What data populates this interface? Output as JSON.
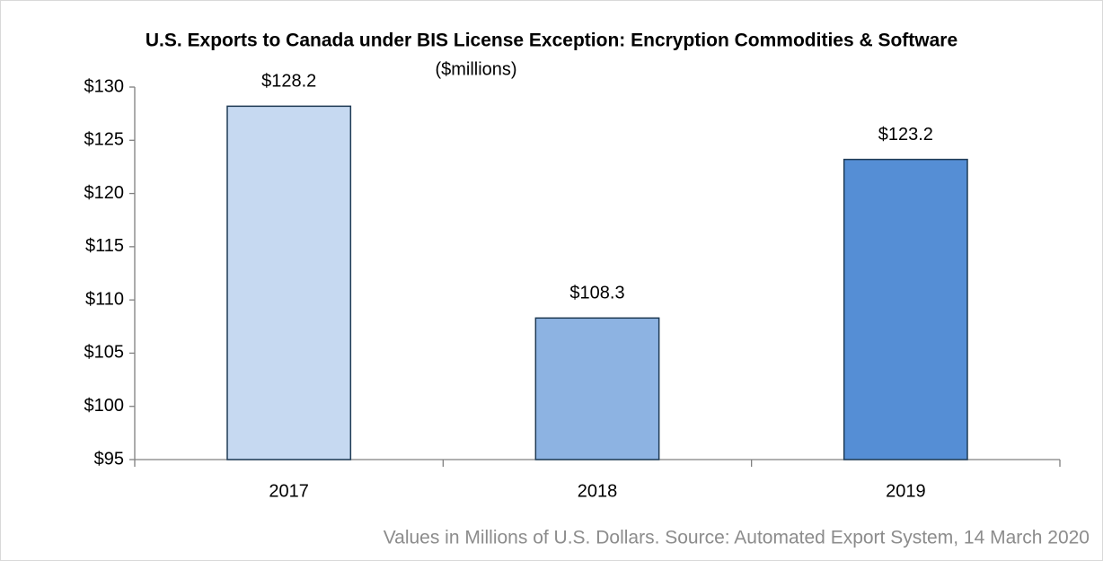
{
  "chart_data": {
    "type": "bar",
    "title": "U.S. Exports to Canada under BIS License Exception: Encryption Commodities & Software",
    "subtitle": "($millions)",
    "categories": [
      "2017",
      "2018",
      "2019"
    ],
    "values": [
      128.2,
      108.3,
      123.2
    ],
    "value_labels": [
      "$128.2",
      "$108.3",
      "$123.2"
    ],
    "colors": [
      "#c6d9f1",
      "#8db3e2",
      "#558ed5"
    ],
    "ylim": [
      95,
      130
    ],
    "yticks": [
      {
        "value": 95,
        "label": "$95"
      },
      {
        "value": 100,
        "label": "$100"
      },
      {
        "value": 105,
        "label": "$105"
      },
      {
        "value": 110,
        "label": "$110"
      },
      {
        "value": 115,
        "label": "$115"
      },
      {
        "value": 120,
        "label": "$120"
      },
      {
        "value": 125,
        "label": "$125"
      },
      {
        "value": 130,
        "label": "$130"
      }
    ],
    "grid": false,
    "footnote": "Values in Millions of U.S. Dollars. Source: Automated Export System, 14 March 2020"
  }
}
